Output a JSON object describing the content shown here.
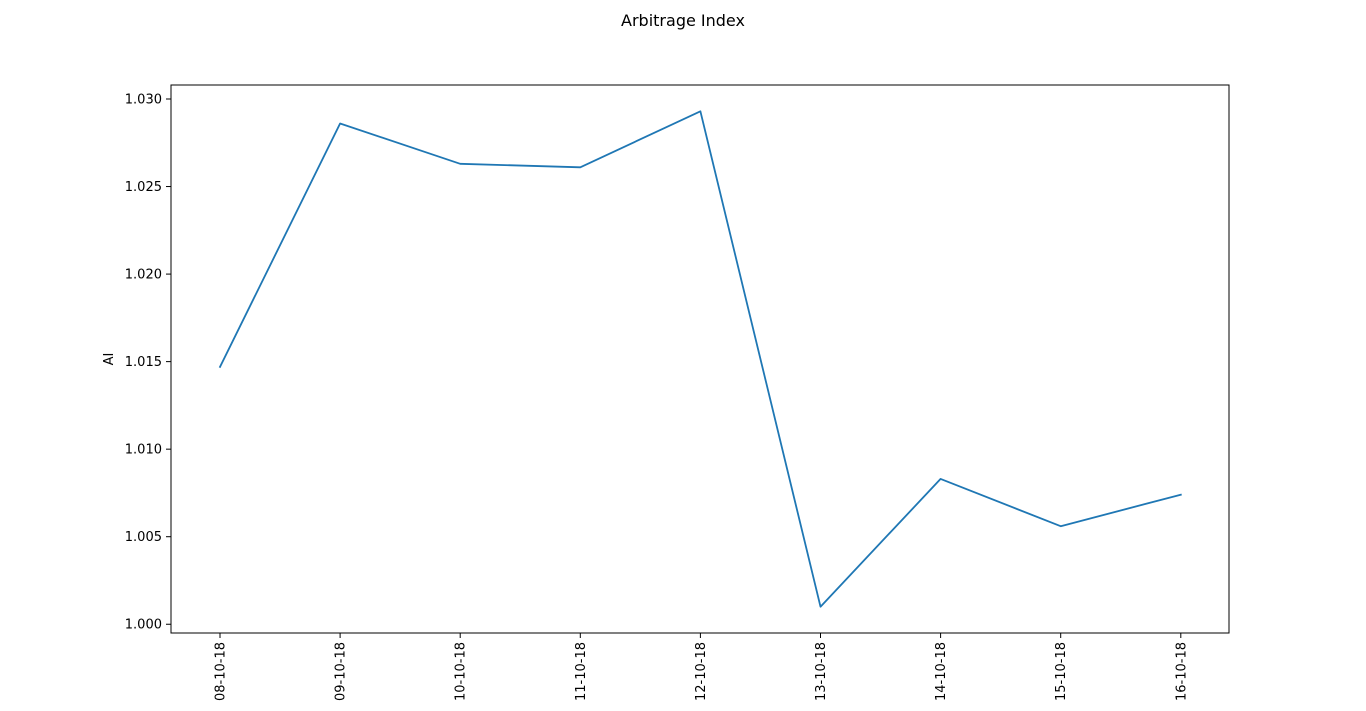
{
  "chart_data": {
    "type": "line",
    "title": "Arbitrage Index",
    "xlabel": "",
    "ylabel": "AI",
    "categories": [
      "08-10-18",
      "09-10-18",
      "10-10-18",
      "11-10-18",
      "12-10-18",
      "13-10-18",
      "14-10-18",
      "15-10-18",
      "16-10-18"
    ],
    "series": [
      {
        "color": "#1f77b4",
        "values": [
          1.0147,
          1.0286,
          1.0263,
          1.0261,
          1.0293,
          1.001,
          1.0083,
          1.0056,
          1.0074
        ]
      }
    ],
    "ylim": [
      0.9995,
      1.0308
    ],
    "yticks": [
      "1.000",
      "1.005",
      "1.010",
      "1.015",
      "1.020",
      "1.025",
      "1.030"
    ],
    "ytick_values": [
      1.0,
      1.005,
      1.01,
      1.015,
      1.02,
      1.025,
      1.03
    ],
    "grid": false,
    "legend": "none"
  }
}
